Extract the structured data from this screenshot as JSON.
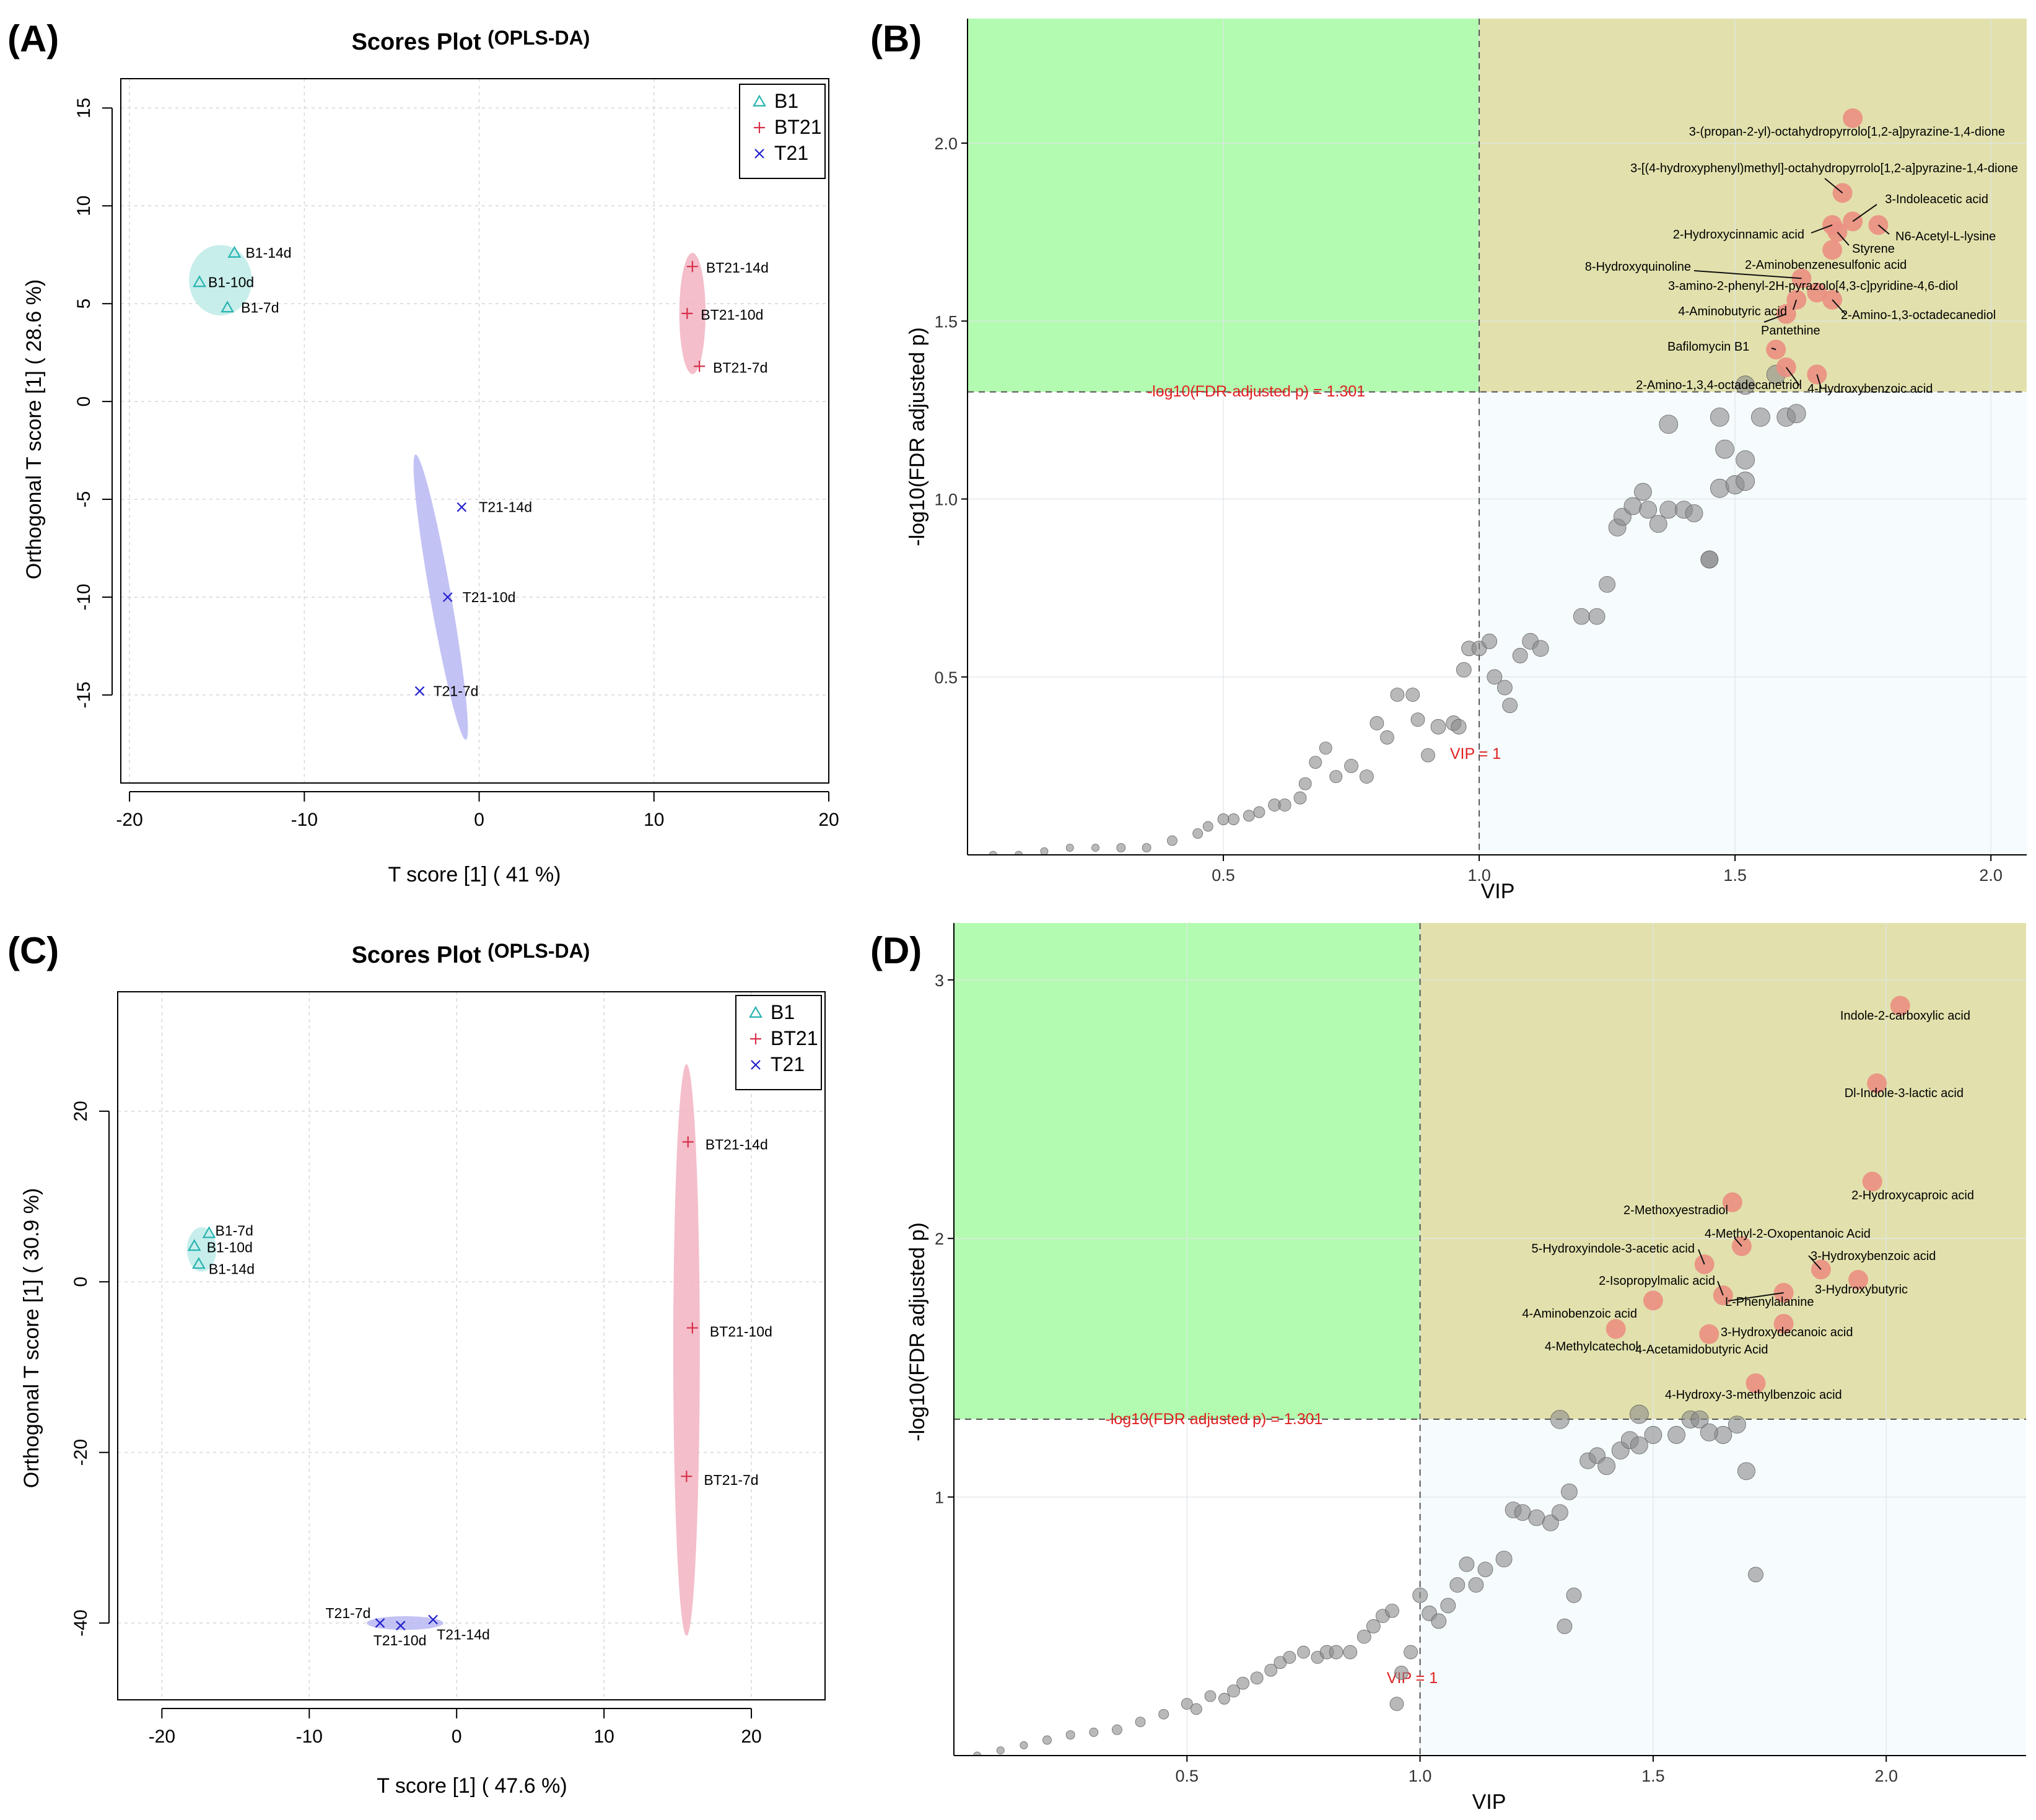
{
  "chart_data": [
    {
      "panel": "(A)",
      "type": "scatter",
      "title": "Scores Plot",
      "subtitle": "(OPLS-DA)",
      "xlabel": "T score [1] ( 41 %)",
      "ylabel": "Orthogonal T score [1] ( 28.6 %)",
      "xlim": [
        -20.5,
        20
      ],
      "ylim": [
        -19.5,
        16.5
      ],
      "xticks": [
        -20,
        -10,
        0,
        10,
        20
      ],
      "yticks": [
        -15,
        -10,
        -5,
        0,
        5,
        10,
        15
      ],
      "legend": [
        {
          "name": "B1",
          "marker": "triangle",
          "color": "#27b3b0"
        },
        {
          "name": "BT21",
          "marker": "plus",
          "color": "#d6304a"
        },
        {
          "name": "T21",
          "marker": "cross",
          "color": "#2222cc"
        }
      ],
      "series": [
        {
          "name": "B1",
          "points": [
            {
              "label": "B1-14d",
              "x": -14.0,
              "y": 7.6
            },
            {
              "label": "B1-10d",
              "x": -16.0,
              "y": 6.1
            },
            {
              "label": "B1-7d",
              "x": -14.4,
              "y": 4.8
            }
          ],
          "ellipse": {
            "cx": -14.8,
            "cy": 6.2,
            "rx": 1.8,
            "ry": 1.8,
            "angle": 0,
            "color": "#bdebe8"
          }
        },
        {
          "name": "BT21",
          "points": [
            {
              "label": "BT21-14d",
              "x": 12.2,
              "y": 6.9
            },
            {
              "label": "BT21-10d",
              "x": 11.9,
              "y": 4.5
            },
            {
              "label": "BT21-7d",
              "x": 12.6,
              "y": 1.8
            }
          ],
          "ellipse": {
            "cx": 12.2,
            "cy": 4.5,
            "rx": 0.75,
            "ry": 3.1,
            "angle": 0,
            "color": "#f2b3c1"
          }
        },
        {
          "name": "T21",
          "points": [
            {
              "label": "T21-14d",
              "x": -1.0,
              "y": -5.4
            },
            {
              "label": "T21-10d",
              "x": -1.8,
              "y": -10.0
            },
            {
              "label": "T21-7d",
              "x": -3.4,
              "y": -14.8
            }
          ],
          "ellipse": {
            "cx": -2.2,
            "cy": -10.0,
            "rx": 0.6,
            "ry": 7.4,
            "angle": -10,
            "color": "#b9b7f2"
          }
        }
      ]
    },
    {
      "panel": "(B)",
      "type": "scatter",
      "xlabel": "VIP",
      "ylabel": "-log10(FDR adjusted p)",
      "xlim": [
        0,
        2.07
      ],
      "ylim": [
        0,
        2.35
      ],
      "xticks": [
        0.5,
        1.0,
        1.5,
        2.0
      ],
      "xtick_labels": [
        "0.5",
        "1.0",
        "1.5",
        "2.0"
      ],
      "yticks": [
        0.5,
        1.0,
        1.5,
        2.0
      ],
      "ytick_labels": [
        "0.5",
        "1.0",
        "1.5",
        "2.0"
      ],
      "vip_threshold": 1.0,
      "p_threshold": 1.301,
      "hline_label": "-log10(FDR-adjusted p) = 1.301",
      "vline_label": "VIP = 1",
      "significant": [
        {
          "name": "3-(propan-2-yl)-octahydropyrrolo[1,2-a]pyrazine-1,4-dione",
          "x": 1.73,
          "y": 2.07
        },
        {
          "name": "3-[(4-hydroxyphenyl)methyl]-octahydropyrrolo[1,2-a]pyrazine-1,4-dione",
          "x": 1.71,
          "y": 1.86
        },
        {
          "name": "3-Indoleacetic acid",
          "x": 1.73,
          "y": 1.78
        },
        {
          "name": "2-Hydroxycinnamic acid",
          "x": 1.69,
          "y": 1.77
        },
        {
          "name": "N6-Acetyl-L-lysine",
          "x": 1.78,
          "y": 1.77
        },
        {
          "name": "Styrene",
          "x": 1.7,
          "y": 1.75
        },
        {
          "name": "2-Aminobenzenesulfonic acid",
          "x": 1.69,
          "y": 1.7
        },
        {
          "name": "8-Hydroxyquinoline",
          "x": 1.63,
          "y": 1.62
        },
        {
          "name": "3-amino-2-phenyl-2H-pyrazolo[4,3-c]pyridine-4,6-diol",
          "x": 1.66,
          "y": 1.58
        },
        {
          "name": "4-Aminobutyric acid",
          "x": 1.62,
          "y": 1.56
        },
        {
          "name": "2-Amino-1,3-octadecanediol",
          "x": 1.69,
          "y": 1.56
        },
        {
          "name": "Pantethine",
          "x": 1.6,
          "y": 1.52
        },
        {
          "name": "Bafilomycin B1",
          "x": 1.58,
          "y": 1.42
        },
        {
          "name": "2-Amino-1,3,4-octadecanetriol",
          "x": 1.6,
          "y": 1.37
        },
        {
          "name": "4-Hydroxybenzoic acid",
          "x": 1.66,
          "y": 1.35
        }
      ]
    },
    {
      "panel": "(C)",
      "type": "scatter",
      "title": "Scores Plot",
      "subtitle": "(OPLS-DA)",
      "xlabel": "T score [1] ( 47.6 %)",
      "ylabel": "Orthogonal T score [1] ( 30.9 %)",
      "xlim": [
        -23,
        25
      ],
      "ylim": [
        -49,
        34
      ],
      "xticks": [
        -20,
        -10,
        0,
        10,
        20
      ],
      "yticks": [
        -40,
        -20,
        0,
        20
      ],
      "legend": [
        {
          "name": "B1",
          "marker": "triangle",
          "color": "#27b3b0"
        },
        {
          "name": "BT21",
          "marker": "plus",
          "color": "#d6304a"
        },
        {
          "name": "T21",
          "marker": "cross",
          "color": "#2222cc"
        }
      ],
      "series": [
        {
          "name": "B1",
          "points": [
            {
              "label": "B1-7d",
              "x": -16.8,
              "y": 5.7
            },
            {
              "label": "B1-10d",
              "x": -17.8,
              "y": 4.2
            },
            {
              "label": "B1-14d",
              "x": -17.5,
              "y": 2.1
            }
          ],
          "ellipse": {
            "cx": -17.3,
            "cy": 3.8,
            "rx": 1.0,
            "ry": 2.6,
            "angle": 0,
            "color": "#bdebe8"
          }
        },
        {
          "name": "BT21",
          "points": [
            {
              "label": "BT21-14d",
              "x": 15.7,
              "y": 16.4
            },
            {
              "label": "BT21-10d",
              "x": 16.0,
              "y": -5.4
            },
            {
              "label": "BT21-7d",
              "x": 15.6,
              "y": -22.8
            }
          ],
          "ellipse": {
            "cx": 15.6,
            "cy": -8.0,
            "rx": 0.9,
            "ry": 33.5,
            "angle": 0,
            "color": "#f2b3c1"
          }
        },
        {
          "name": "T21",
          "points": [
            {
              "label": "T21-7d",
              "x": -5.2,
              "y": -40.0
            },
            {
              "label": "T21-10d",
              "x": -3.8,
              "y": -40.3
            },
            {
              "label": "T21-14d",
              "x": -1.6,
              "y": -39.6
            }
          ],
          "ellipse": {
            "cx": -3.5,
            "cy": -40.0,
            "rx": 2.6,
            "ry": 0.8,
            "angle": 0,
            "color": "#b9b7f2"
          }
        }
      ]
    },
    {
      "panel": "(D)",
      "type": "scatter",
      "xlabel": "VIP",
      "ylabel": "-log10(FDR adjusted p)",
      "xlim": [
        0,
        2.3
      ],
      "ylim": [
        0,
        3.22
      ],
      "xticks": [
        0.5,
        1.0,
        1.5,
        2.0
      ],
      "xtick_labels": [
        "0.5",
        "1.0",
        "1.5",
        "2.0"
      ],
      "yticks": [
        1,
        2,
        3
      ],
      "ytick_labels": [
        "1",
        "2",
        "3"
      ],
      "vip_threshold": 1.0,
      "p_threshold": 1.301,
      "hline_label": "-log10(FDR adjusted p) = 1.301",
      "vline_label": "VIP = 1",
      "significant": [
        {
          "name": "Indole-2-carboxylic acid",
          "x": 2.03,
          "y": 2.9
        },
        {
          "name": "Dl-Indole-3-lactic acid",
          "x": 1.98,
          "y": 2.6
        },
        {
          "name": "2-Hydroxycaproic acid",
          "x": 1.97,
          "y": 2.22
        },
        {
          "name": "2-Methoxyestradiol",
          "x": 1.67,
          "y": 2.14
        },
        {
          "name": "4-Methyl-2-Oxopentanoic Acid",
          "x": 1.69,
          "y": 1.97
        },
        {
          "name": "5-Hydroxyindole-3-acetic acid",
          "x": 1.61,
          "y": 1.9
        },
        {
          "name": "3-Hydroxybenzoic acid",
          "x": 1.86,
          "y": 1.88
        },
        {
          "name": "3-Hydroxybutyric",
          "x": 1.94,
          "y": 1.84
        },
        {
          "name": "2-Isopropylmalic acid",
          "x": 1.65,
          "y": 1.78
        },
        {
          "name": "L-Phenylalanine",
          "x": 1.78,
          "y": 1.79
        },
        {
          "name": "4-Aminobenzoic acid",
          "x": 1.5,
          "y": 1.76
        },
        {
          "name": "3-Hydroxydecanoic acid",
          "x": 1.78,
          "y": 1.67
        },
        {
          "name": "4-Methylcatechol",
          "x": 1.42,
          "y": 1.65
        },
        {
          "name": "4-Acetamidobutyric Acid",
          "x": 1.62,
          "y": 1.63
        },
        {
          "name": "4-Hydroxy-3-methylbenzoic acid",
          "x": 1.72,
          "y": 1.44
        }
      ]
    }
  ]
}
